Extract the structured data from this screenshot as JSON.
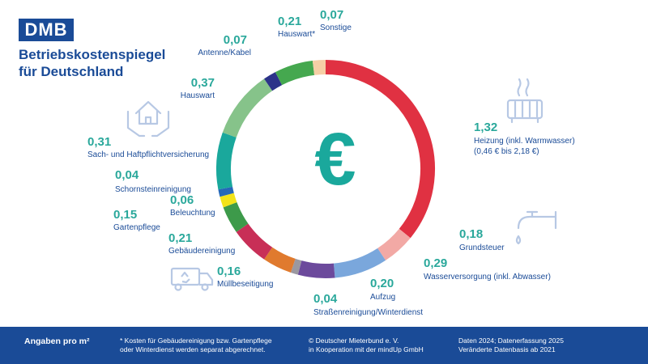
{
  "brand": {
    "logo_text": "DMB",
    "title_line1": "Betriebskostenspiegel",
    "title_line2": "für Deutschland"
  },
  "center_symbol": "€",
  "chart_data": {
    "type": "pie",
    "variant": "donut",
    "unit": "€ pro m²",
    "slices": [
      {
        "value": "1,32",
        "num": 1.32,
        "label": "Heizung (inkl. Warmwasser)",
        "sublabel": "(0,46 € bis 2,18 €)",
        "color": "#e03142"
      },
      {
        "value": "0,18",
        "num": 0.18,
        "label": "Grundsteuer",
        "color": "#f2a9a5"
      },
      {
        "value": "0,29",
        "num": 0.29,
        "label": "Wasserversorgung (inkl. Abwasser)",
        "color": "#7aa7dc"
      },
      {
        "value": "0,20",
        "num": 0.2,
        "label": "Aufzug",
        "color": "#6c4a9c"
      },
      {
        "value": "0,04",
        "num": 0.04,
        "label": "Straßenreinigung/Winterdienst",
        "color": "#9b98a0"
      },
      {
        "value": "0,16",
        "num": 0.16,
        "label": "Müllbeseitigung",
        "color": "#e07a2e"
      },
      {
        "value": "0,21",
        "num": 0.21,
        "label": "Gebäudereinigung",
        "color": "#c82f57"
      },
      {
        "value": "0,15",
        "num": 0.15,
        "label": "Gartenpflege",
        "color": "#3d9a4a"
      },
      {
        "value": "0,06",
        "num": 0.06,
        "label": "Beleuchtung",
        "color": "#f2e31a"
      },
      {
        "value": "0,04",
        "num": 0.04,
        "label": "Schornsteinreinigung",
        "color": "#2568b8"
      },
      {
        "value": "0,31",
        "num": 0.31,
        "label": "Sach- und Haftpflichtversicherung",
        "color": "#1aa89c"
      },
      {
        "value": "0,37",
        "num": 0.37,
        "label": "Hauswart",
        "color": "#86c38a"
      },
      {
        "value": "0,07",
        "num": 0.07,
        "label": "Antenne/Kabel",
        "color": "#2c3389"
      },
      {
        "value": "0,21",
        "num": 0.21,
        "label": "Hauswart*",
        "color": "#45a84f"
      },
      {
        "value": "0,07",
        "num": 0.07,
        "label": "Sonstige",
        "color": "#f6cfa6"
      }
    ]
  },
  "footer": {
    "basis": "Angaben pro m²",
    "note_line1": "* Kosten für Gebäudereinigung bzw. Gartenpflege",
    "note_line2": "oder Winterdienst werden separat abgerechnet.",
    "copy_line1": "© Deutscher Mieterbund e. V.",
    "copy_line2": "in Kooperation mit der mindUp GmbH",
    "date_line1": "Daten 2024; Datenerfassung 2025",
    "date_line2": "Veränderte Datenbasis ab 2021"
  }
}
